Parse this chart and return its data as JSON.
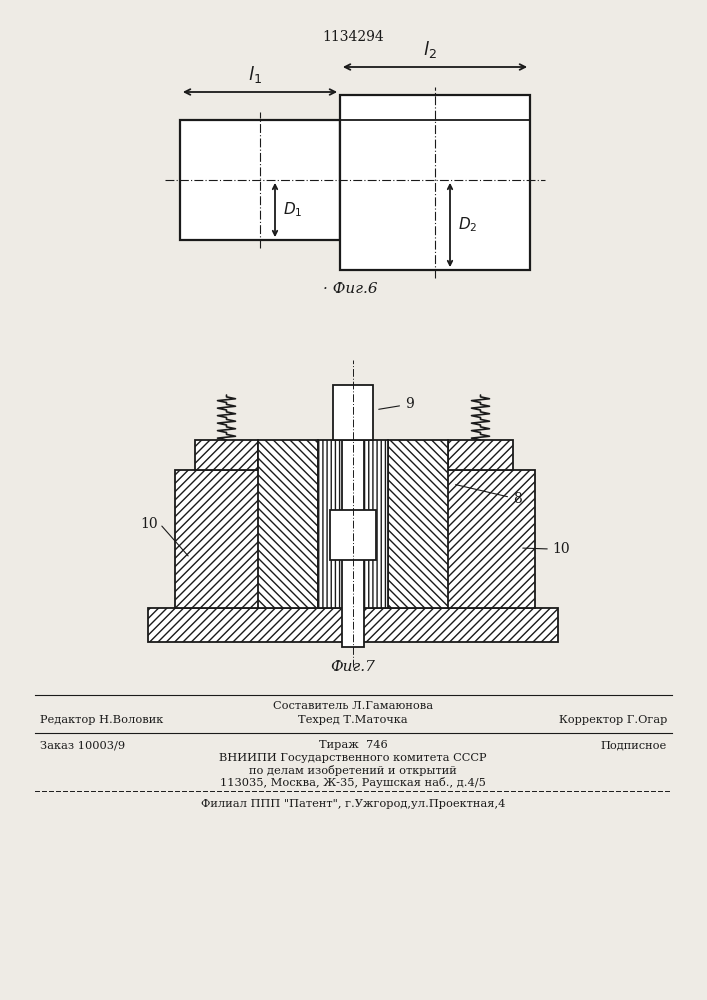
{
  "patent_number": "1134294",
  "fig6_caption": "Фиг.6",
  "fig7_caption": "Фиг.7",
  "footer_line1_center": "Составитель Л.Гамаюнова",
  "footer_line2_left": "Редактор Н.Воловик",
  "footer_line2_center": "Техред Т.Маточка",
  "footer_line2_right": "Корректор Г.Огар",
  "footer_line3_left": "Заказ 10003/9",
  "footer_line3_center": "Тираж  746",
  "footer_line3_right": "Подписное",
  "footer_line4": "ВНИИПИ Государственного комитета СССР",
  "footer_line5": "по делам изобретений и открытий",
  "footer_line6": "113035, Москва, Ж-35, Раушская наб., д.4/5",
  "footer_line7": "Филиал ППП \"Патент\", г.Ужгород,ул.Проектная,4",
  "bg_color": "#eeebe5",
  "line_color": "#1a1a1a"
}
